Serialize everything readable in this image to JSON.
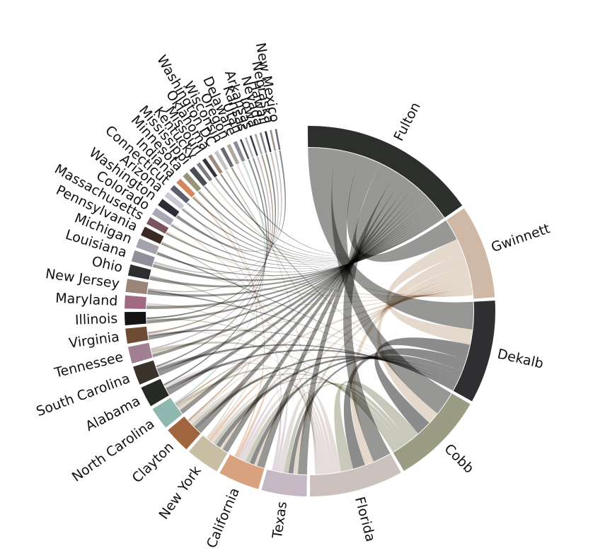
{
  "chart_data": {
    "type": "chord",
    "groups": [
      {
        "label": "Fulton",
        "color": "#2d2f2d",
        "value": 95
      },
      {
        "label": "Gwinnett",
        "color": "#cfb9a6",
        "value": 50
      },
      {
        "label": "Dekalb",
        "color": "#2f2e30",
        "value": 55
      },
      {
        "label": "Cobb",
        "color": "#9a9c83",
        "value": 50
      },
      {
        "label": "Florida",
        "color": "#cdc1bd",
        "value": 50
      },
      {
        "label": "Texas",
        "color": "#c6b8c3",
        "value": 24
      },
      {
        "label": "California",
        "color": "#d9a27e",
        "value": 22
      },
      {
        "label": "New York",
        "color": "#c7bea4",
        "value": 18
      },
      {
        "label": "Clayton",
        "color": "#a1653f",
        "value": 14
      },
      {
        "label": "North Carolina",
        "color": "#8fb8b0",
        "value": 12
      },
      {
        "label": "Alabama",
        "color": "#252a25",
        "value": 11
      },
      {
        "label": "South Carolina",
        "color": "#3a332b",
        "value": 10
      },
      {
        "label": "Tennessee",
        "color": "#a18091",
        "value": 9
      },
      {
        "label": "Virginia",
        "color": "#6e4b33",
        "value": 8
      },
      {
        "label": "Illinois",
        "color": "#141414",
        "value": 7
      },
      {
        "label": "Maryland",
        "color": "#a06b82",
        "value": 7
      },
      {
        "label": "New Jersey",
        "color": "#9b857a",
        "value": 7
      },
      {
        "label": "Ohio",
        "color": "#2e2e30",
        "value": 6
      },
      {
        "label": "Louisiana",
        "color": "#8f8f9c",
        "value": 6
      },
      {
        "label": "Michigan",
        "color": "#a5a2ad",
        "value": 5
      },
      {
        "label": "Pennsylvania",
        "color": "#3a2a22",
        "value": 5
      },
      {
        "label": "Massachusetts",
        "color": "#7a5560",
        "value": 4
      },
      {
        "label": "Colorado",
        "color": "#a9a9b5",
        "value": 4
      },
      {
        "label": "Washington",
        "color": "#2c2c34",
        "value": 4
      },
      {
        "label": "Arizona",
        "color": "#c8c8d6",
        "value": 3
      },
      {
        "label": "Connecticut",
        "color": "#5c5f6b",
        "value": 3
      },
      {
        "label": "Indiana",
        "color": "#d4875e",
        "value": 3
      },
      {
        "label": "Minnesota",
        "color": "#9a9478",
        "value": 3
      },
      {
        "label": "Mississippi",
        "color": "#4a4e54",
        "value": 3
      },
      {
        "label": "Kentucky",
        "color": "#7d7d8a",
        "value": 2
      },
      {
        "label": "Missouri",
        "color": "#35353b",
        "value": 2
      },
      {
        "label": "Oklahoma",
        "color": "#9d8b80",
        "value": 2
      },
      {
        "label": "Washington DC",
        "color": "#c2c2c8",
        "value": 2
      },
      {
        "label": "Wisconsin",
        "color": "#6a6a70",
        "value": 2
      },
      {
        "label": "Oregon",
        "color": "#b0a89c",
        "value": 2
      },
      {
        "label": "Delaware",
        "color": "#8c8c99",
        "value": 2
      },
      {
        "label": "Utah",
        "color": "#4b4b52",
        "value": 1
      },
      {
        "label": "Kansas",
        "color": "#b5b0bd",
        "value": 1
      },
      {
        "label": "Arkansas",
        "color": "#3e3e44",
        "value": 1
      },
      {
        "label": "Iowa",
        "color": "#a9a19a",
        "value": 1
      },
      {
        "label": "Nevada",
        "color": "#7a7a84",
        "value": 1
      },
      {
        "label": "Hawaii",
        "color": "#2f2f35",
        "value": 1
      },
      {
        "label": "Nebraska",
        "color": "#9a8e86",
        "value": 1
      },
      {
        "label": "New Mexico",
        "color": "#6d6d77",
        "value": 1
      }
    ],
    "chords": [
      [
        0,
        2,
        18
      ],
      [
        0,
        3,
        16
      ],
      [
        0,
        1,
        14
      ],
      [
        0,
        4,
        12
      ],
      [
        0,
        5,
        6
      ],
      [
        0,
        6,
        5
      ],
      [
        0,
        7,
        4
      ],
      [
        0,
        8,
        4
      ],
      [
        0,
        9,
        3
      ],
      [
        0,
        10,
        3
      ],
      [
        0,
        11,
        3
      ],
      [
        0,
        12,
        2
      ],
      [
        0,
        13,
        2
      ],
      [
        0,
        14,
        2
      ],
      [
        0,
        15,
        2
      ],
      [
        0,
        16,
        2
      ],
      [
        0,
        17,
        2
      ],
      [
        0,
        18,
        2
      ],
      [
        0,
        19,
        1
      ],
      [
        0,
        20,
        1
      ],
      [
        0,
        21,
        1
      ],
      [
        0,
        22,
        1
      ],
      [
        0,
        23,
        1
      ],
      [
        0,
        24,
        1
      ],
      [
        0,
        25,
        1
      ],
      [
        0,
        26,
        1
      ],
      [
        0,
        27,
        1
      ],
      [
        0,
        28,
        1
      ],
      [
        0,
        30,
        1
      ],
      [
        0,
        33,
        1
      ],
      [
        1,
        2,
        10
      ],
      [
        1,
        3,
        8
      ],
      [
        1,
        4,
        6
      ],
      [
        1,
        5,
        3
      ],
      [
        1,
        6,
        2
      ],
      [
        1,
        7,
        2
      ],
      [
        1,
        9,
        2
      ],
      [
        1,
        12,
        1
      ],
      [
        1,
        15,
        1
      ],
      [
        1,
        18,
        1
      ],
      [
        1,
        21,
        1
      ],
      [
        1,
        29,
        1
      ],
      [
        2,
        3,
        10
      ],
      [
        2,
        4,
        8
      ],
      [
        2,
        5,
        3
      ],
      [
        2,
        6,
        3
      ],
      [
        2,
        7,
        3
      ],
      [
        2,
        8,
        2
      ],
      [
        2,
        10,
        2
      ],
      [
        2,
        11,
        2
      ],
      [
        2,
        13,
        1
      ],
      [
        2,
        16,
        1
      ],
      [
        2,
        19,
        1
      ],
      [
        2,
        31,
        1
      ],
      [
        3,
        4,
        8
      ],
      [
        3,
        5,
        3
      ],
      [
        3,
        6,
        3
      ],
      [
        3,
        7,
        2
      ],
      [
        3,
        8,
        2
      ],
      [
        3,
        9,
        2
      ],
      [
        3,
        12,
        2
      ],
      [
        3,
        14,
        1
      ],
      [
        3,
        17,
        1
      ],
      [
        3,
        20,
        1
      ],
      [
        3,
        32,
        1
      ],
      [
        4,
        5,
        4
      ],
      [
        4,
        6,
        3
      ],
      [
        4,
        7,
        2
      ],
      [
        4,
        8,
        2
      ],
      [
        4,
        10,
        2
      ],
      [
        4,
        13,
        1
      ],
      [
        4,
        15,
        1
      ],
      [
        4,
        22,
        1
      ],
      [
        4,
        34,
        1
      ],
      [
        5,
        6,
        2
      ],
      [
        5,
        11,
        1
      ],
      [
        5,
        24,
        1
      ],
      [
        6,
        7,
        2
      ],
      [
        6,
        26,
        1
      ],
      [
        7,
        8,
        1
      ],
      [
        7,
        27,
        1
      ],
      [
        8,
        9,
        1
      ],
      [
        9,
        35,
        1
      ],
      [
        10,
        36,
        1
      ],
      [
        11,
        37,
        1
      ],
      [
        12,
        38,
        1
      ],
      [
        13,
        39,
        1
      ],
      [
        14,
        40,
        1
      ],
      [
        16,
        41,
        1
      ],
      [
        18,
        42,
        1
      ],
      [
        23,
        43,
        1
      ]
    ]
  }
}
